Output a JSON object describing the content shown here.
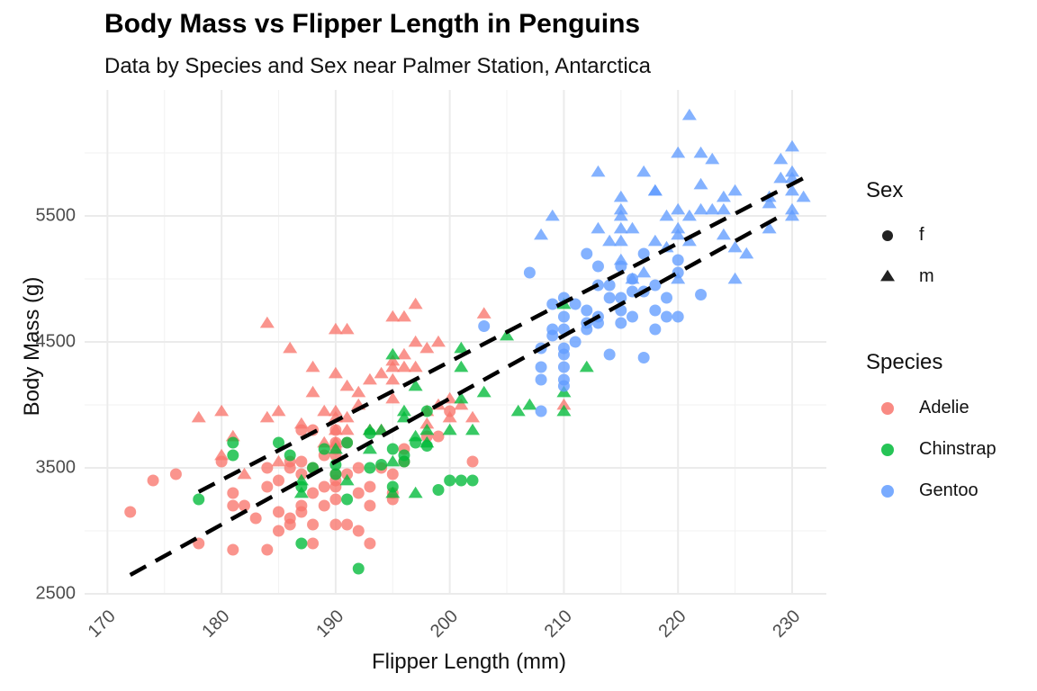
{
  "chart_data": {
    "type": "scatter",
    "title": "Body Mass vs Flipper Length in Penguins",
    "subtitle": "Data by Species and Sex near Palmer Station, Antarctica",
    "xlabel": "Flipper Length (mm)",
    "ylabel": "Body Mass (g)",
    "xlim": [
      168,
      233
    ],
    "ylim": [
      2500,
      6500
    ],
    "xticks": [
      170,
      180,
      190,
      200,
      210,
      220,
      230
    ],
    "yticks": [
      2500,
      3500,
      4500,
      5500
    ],
    "grid": true,
    "legend_position": "right",
    "legends": [
      {
        "title": "Sex",
        "entries": [
          {
            "label": "f",
            "shape": "circle"
          },
          {
            "label": "m",
            "shape": "triangle"
          }
        ]
      },
      {
        "title": "Species",
        "entries": [
          {
            "label": "Adelie",
            "color": "#F8766D"
          },
          {
            "label": "Chinstrap",
            "color": "#00BA38"
          },
          {
            "label": "Gentoo",
            "color": "#619CFF"
          }
        ]
      }
    ],
    "colors": {
      "Adelie": "#F8766D",
      "Chinstrap": "#00BA38",
      "Gentoo": "#619CFF"
    },
    "trend_lines": [
      {
        "x": [
          172,
          229
        ],
        "y": [
          2650,
          5500
        ]
      },
      {
        "x": [
          178,
          231
        ],
        "y": [
          3310,
          5800
        ]
      }
    ],
    "series": [
      {
        "species": "Adelie",
        "sex": "f",
        "points": [
          [
            172,
            3150
          ],
          [
            174,
            3400
          ],
          [
            176,
            3450
          ],
          [
            178,
            2900
          ],
          [
            180,
            3550
          ],
          [
            181,
            3300
          ],
          [
            181,
            3200
          ],
          [
            181,
            2850
          ],
          [
            182,
            3200
          ],
          [
            183,
            3100
          ],
          [
            184,
            3350
          ],
          [
            184,
            3500
          ],
          [
            184,
            2850
          ],
          [
            185,
            3150
          ],
          [
            185,
            3400
          ],
          [
            185,
            3000
          ],
          [
            186,
            3550
          ],
          [
            186,
            3500
          ],
          [
            186,
            3100
          ],
          [
            186,
            3050
          ],
          [
            187,
            3800
          ],
          [
            187,
            3550
          ],
          [
            187,
            3450
          ],
          [
            187,
            3200
          ],
          [
            187,
            3150
          ],
          [
            188,
            3800
          ],
          [
            188,
            3500
          ],
          [
            188,
            3300
          ],
          [
            188,
            3050
          ],
          [
            188,
            2900
          ],
          [
            189,
            3600
          ],
          [
            189,
            3350
          ],
          [
            189,
            3200
          ],
          [
            190,
            3800
          ],
          [
            190,
            3700
          ],
          [
            190,
            3650
          ],
          [
            190,
            3600
          ],
          [
            190,
            3450
          ],
          [
            190,
            3400
          ],
          [
            190,
            3350
          ],
          [
            190,
            3250
          ],
          [
            190,
            3050
          ],
          [
            191,
            3700
          ],
          [
            191,
            3450
          ],
          [
            191,
            3050
          ],
          [
            192,
            3500
          ],
          [
            192,
            3300
          ],
          [
            192,
            3000
          ],
          [
            193,
            3350
          ],
          [
            193,
            3200
          ],
          [
            193,
            2900
          ],
          [
            194,
            3500
          ],
          [
            195,
            3450
          ],
          [
            195,
            3300
          ],
          [
            195,
            3250
          ],
          [
            196,
            3650
          ],
          [
            196,
            3550
          ],
          [
            198,
            3750
          ],
          [
            199,
            3750
          ],
          [
            200,
            3950
          ],
          [
            202,
            3550
          ]
        ]
      },
      {
        "species": "Adelie",
        "sex": "m",
        "points": [
          [
            178,
            3900
          ],
          [
            180,
            3950
          ],
          [
            180,
            3600
          ],
          [
            181,
            3750
          ],
          [
            182,
            3450
          ],
          [
            184,
            4650
          ],
          [
            184,
            3900
          ],
          [
            185,
            3950
          ],
          [
            185,
            3550
          ],
          [
            186,
            4450
          ],
          [
            187,
            3850
          ],
          [
            188,
            4300
          ],
          [
            188,
            4100
          ],
          [
            189,
            3950
          ],
          [
            189,
            3700
          ],
          [
            190,
            4600
          ],
          [
            190,
            4250
          ],
          [
            190,
            3950
          ],
          [
            190,
            3900
          ],
          [
            190,
            3800
          ],
          [
            190,
            3700
          ],
          [
            191,
            4600
          ],
          [
            191,
            4150
          ],
          [
            191,
            3900
          ],
          [
            191,
            3800
          ],
          [
            192,
            4100
          ],
          [
            192,
            4000
          ],
          [
            193,
            4200
          ],
          [
            193,
            3800
          ],
          [
            194,
            4250
          ],
          [
            194,
            3800
          ],
          [
            195,
            4700
          ],
          [
            195,
            4350
          ],
          [
            195,
            4300
          ],
          [
            195,
            4200
          ],
          [
            195,
            4050
          ],
          [
            196,
            4700
          ],
          [
            196,
            4400
          ],
          [
            196,
            4300
          ],
          [
            197,
            4800
          ],
          [
            197,
            4500
          ],
          [
            197,
            4300
          ],
          [
            198,
            4450
          ],
          [
            198,
            3950
          ],
          [
            198,
            3850
          ],
          [
            199,
            4500
          ],
          [
            199,
            4000
          ],
          [
            200,
            4050
          ],
          [
            200,
            3900
          ],
          [
            201,
            4000
          ],
          [
            202,
            3900
          ],
          [
            203,
            4725
          ],
          [
            210,
            4000
          ]
        ]
      },
      {
        "species": "Chinstrap",
        "sex": "f",
        "points": [
          [
            178,
            3250
          ],
          [
            181,
            3700
          ],
          [
            181,
            3600
          ],
          [
            185,
            3700
          ],
          [
            186,
            3600
          ],
          [
            187,
            3350
          ],
          [
            187,
            2900
          ],
          [
            188,
            3500
          ],
          [
            189,
            3650
          ],
          [
            190,
            3525
          ],
          [
            190,
            3450
          ],
          [
            191,
            3700
          ],
          [
            191,
            3250
          ],
          [
            192,
            2700
          ],
          [
            193,
            3775
          ],
          [
            193,
            3500
          ],
          [
            194,
            3525
          ],
          [
            195,
            3650
          ],
          [
            195,
            3350
          ],
          [
            196,
            3600
          ],
          [
            196,
            3550
          ],
          [
            197,
            3700
          ],
          [
            198,
            3950
          ],
          [
            198,
            3675
          ],
          [
            199,
            3325
          ],
          [
            200,
            3400
          ],
          [
            201,
            3400
          ],
          [
            202,
            3400
          ]
        ]
      },
      {
        "species": "Chinstrap",
        "sex": "m",
        "points": [
          [
            187,
            3400
          ],
          [
            187,
            3300
          ],
          [
            190,
            3650
          ],
          [
            191,
            3400
          ],
          [
            193,
            3800
          ],
          [
            193,
            3650
          ],
          [
            194,
            3800
          ],
          [
            195,
            4400
          ],
          [
            195,
            3550
          ],
          [
            195,
            3300
          ],
          [
            196,
            3950
          ],
          [
            196,
            3900
          ],
          [
            197,
            4150
          ],
          [
            197,
            3750
          ],
          [
            197,
            3300
          ],
          [
            198,
            3800
          ],
          [
            198,
            3700
          ],
          [
            200,
            3800
          ],
          [
            201,
            4300
          ],
          [
            201,
            4450
          ],
          [
            201,
            4050
          ],
          [
            202,
            3800
          ],
          [
            203,
            4100
          ],
          [
            205,
            4550
          ],
          [
            206,
            3950
          ],
          [
            207,
            4000
          ],
          [
            210,
            4800
          ],
          [
            210,
            4100
          ],
          [
            210,
            3950
          ],
          [
            212,
            4300
          ]
        ]
      },
      {
        "species": "Gentoo",
        "sex": "f",
        "points": [
          [
            203,
            4625
          ],
          [
            207,
            5050
          ],
          [
            208,
            4450
          ],
          [
            208,
            4300
          ],
          [
            208,
            4200
          ],
          [
            208,
            3950
          ],
          [
            209,
            4800
          ],
          [
            209,
            4600
          ],
          [
            209,
            4550
          ],
          [
            210,
            4850
          ],
          [
            210,
            4700
          ],
          [
            210,
            4600
          ],
          [
            210,
            4450
          ],
          [
            210,
            4400
          ],
          [
            210,
            4300
          ],
          [
            210,
            4200
          ],
          [
            210,
            4150
          ],
          [
            211,
            4800
          ],
          [
            211,
            4500
          ],
          [
            212,
            5200
          ],
          [
            212,
            4750
          ],
          [
            212,
            4650
          ],
          [
            212,
            4600
          ],
          [
            213,
            5100
          ],
          [
            213,
            4950
          ],
          [
            213,
            4700
          ],
          [
            213,
            4650
          ],
          [
            214,
            4850
          ],
          [
            214,
            4400
          ],
          [
            214,
            4950
          ],
          [
            215,
            5100
          ],
          [
            215,
            4850
          ],
          [
            215,
            4750
          ],
          [
            215,
            4650
          ],
          [
            216,
            5000
          ],
          [
            216,
            4900
          ],
          [
            216,
            4700
          ],
          [
            217,
            4900
          ],
          [
            217,
            5200
          ],
          [
            217,
            4375
          ],
          [
            218,
            4950
          ],
          [
            218,
            4600
          ],
          [
            218,
            4750
          ],
          [
            219,
            4850
          ],
          [
            219,
            4700
          ],
          [
            220,
            5150
          ],
          [
            220,
            5050
          ],
          [
            220,
            4700
          ],
          [
            222,
            4875
          ]
        ]
      },
      {
        "species": "Gentoo",
        "sex": "m",
        "points": [
          [
            208,
            5350
          ],
          [
            209,
            5500
          ],
          [
            213,
            5850
          ],
          [
            213,
            5400
          ],
          [
            214,
            5300
          ],
          [
            215,
            5650
          ],
          [
            215,
            5550
          ],
          [
            215,
            5500
          ],
          [
            215,
            5400
          ],
          [
            215,
            5300
          ],
          [
            215,
            5150
          ],
          [
            216,
            5400
          ],
          [
            216,
            5000
          ],
          [
            217,
            5850
          ],
          [
            217,
            5050
          ],
          [
            218,
            5700
          ],
          [
            218,
            5700
          ],
          [
            218,
            5300
          ],
          [
            219,
            5500
          ],
          [
            219,
            5250
          ],
          [
            220,
            6000
          ],
          [
            220,
            5550
          ],
          [
            220,
            5400
          ],
          [
            220,
            5350
          ],
          [
            220,
            5000
          ],
          [
            221,
            6300
          ],
          [
            221,
            5500
          ],
          [
            221,
            5300
          ],
          [
            222,
            6000
          ],
          [
            222,
            5750
          ],
          [
            222,
            5550
          ],
          [
            223,
            5950
          ],
          [
            223,
            5550
          ],
          [
            224,
            5650
          ],
          [
            224,
            5350
          ],
          [
            224,
            5550
          ],
          [
            225,
            5700
          ],
          [
            225,
            5250
          ],
          [
            225,
            5000
          ],
          [
            226,
            5200
          ],
          [
            228,
            5650
          ],
          [
            228,
            5600
          ],
          [
            228,
            5400
          ],
          [
            229,
            5950
          ],
          [
            229,
            5800
          ],
          [
            230,
            6050
          ],
          [
            230,
            5800
          ],
          [
            230,
            5700
          ],
          [
            230,
            5550
          ],
          [
            230,
            5500
          ],
          [
            230,
            5850
          ],
          [
            231,
            5650
          ]
        ]
      }
    ]
  }
}
